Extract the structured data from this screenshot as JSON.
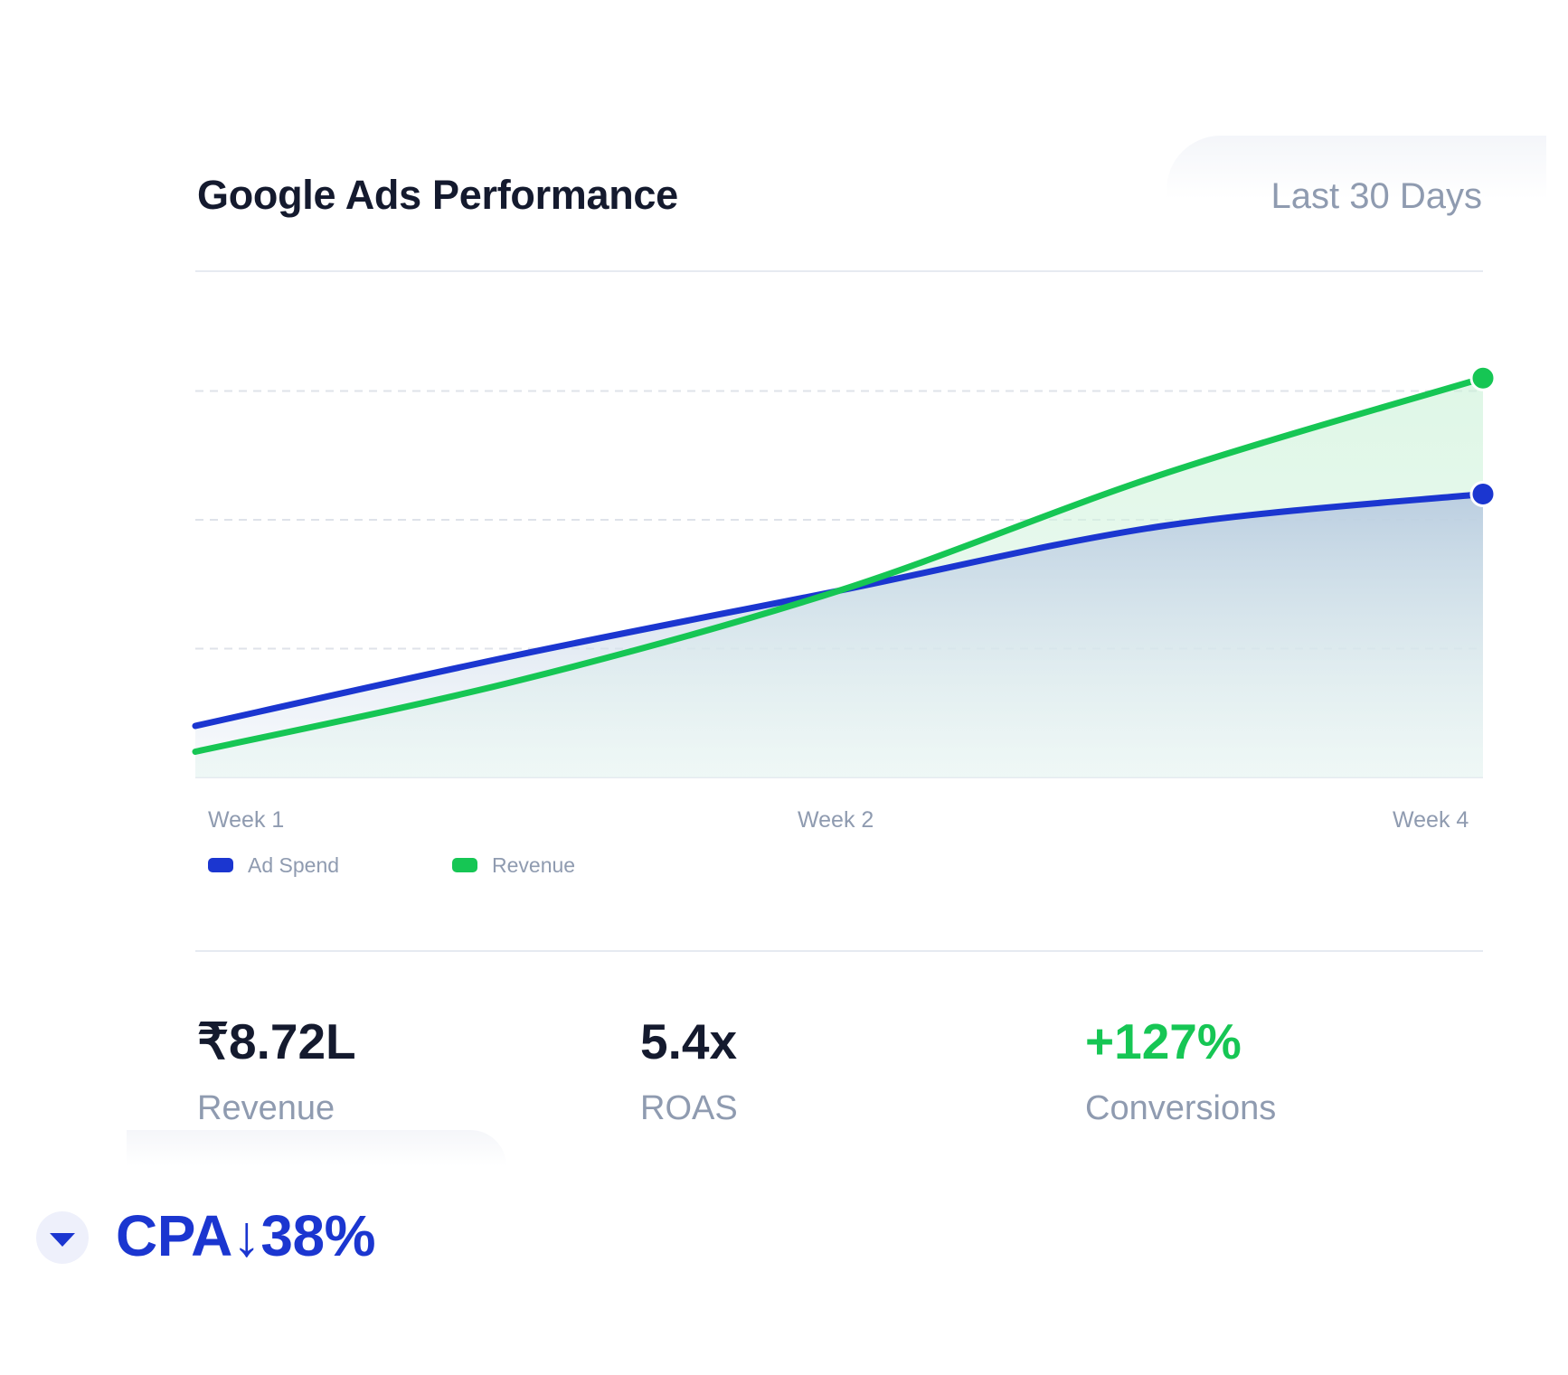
{
  "header": {
    "title": "Google Ads Performance",
    "period": "Last 30 Days"
  },
  "chart_data": {
    "type": "area",
    "x": [
      0,
      1,
      2,
      3,
      4
    ],
    "x_tick_labels": [
      {
        "label": "Week 1",
        "x": 0
      },
      {
        "label": "Week 2",
        "x": 2
      },
      {
        "label": "Week 4",
        "x": 4
      }
    ],
    "ylim": [
      0,
      4
    ],
    "grid": true,
    "legend_position": "bottom-left",
    "series": [
      {
        "name": "Ad Spend",
        "color": "#1b36d0",
        "values": [
          0.4,
          0.95,
          1.45,
          1.95,
          2.2
        ]
      },
      {
        "name": "Revenue",
        "color": "#16c654",
        "values": [
          0.2,
          0.75,
          1.45,
          2.35,
          3.1
        ]
      }
    ]
  },
  "metrics": [
    {
      "value": "₹8.72L",
      "label": "Revenue",
      "color": "#141a2e"
    },
    {
      "value": "5.4x",
      "label": "ROAS",
      "color": "#141a2e"
    },
    {
      "value": "+127%",
      "label": "Conversions",
      "color": "#16c654"
    }
  ],
  "badge": {
    "text": "CPA↓38%",
    "icon": "caret-down-icon",
    "color": "#1b36d0"
  }
}
